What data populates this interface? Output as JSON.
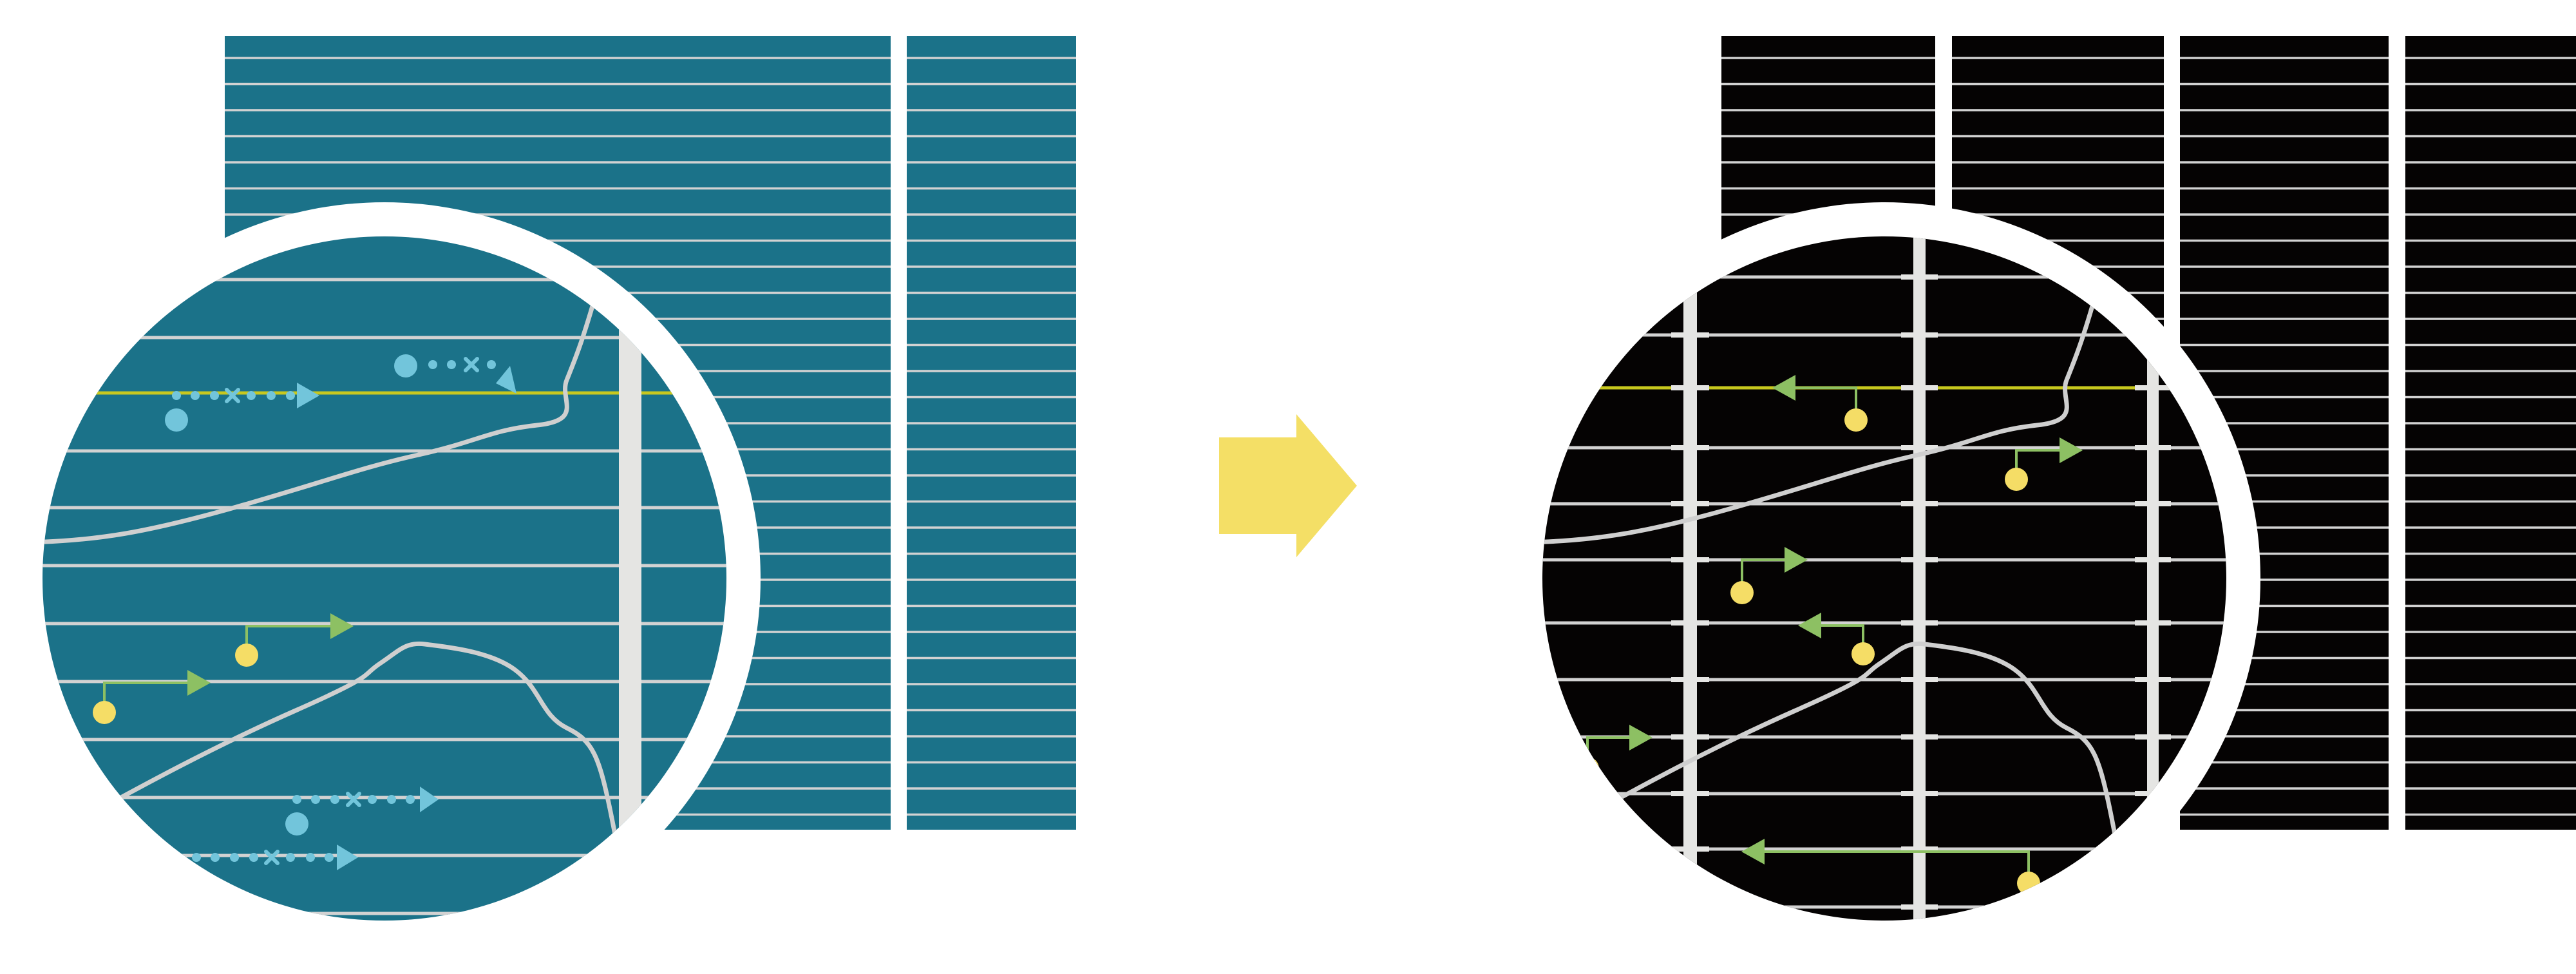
{
  "colors": {
    "background": "#ffffff",
    "before_panel": "#1b7289",
    "after_panel": "#050303",
    "grid_line": "#d2d2d2",
    "highlight_line": "#c8c81e",
    "divider_bar": "#e5e5e3",
    "curve": "#cfcfcf",
    "blue_marker": "#72c5db",
    "green_arrow": "#8dc063",
    "yellow_dot": "#f5dd66",
    "transition_arrow": "#f4df66"
  },
  "panels": {
    "before": {
      "description_icon": "teal-grid-magnified"
    },
    "after": {
      "description_icon": "black-grid-magnified"
    }
  },
  "transition": {
    "icon": "right-arrow-icon"
  }
}
